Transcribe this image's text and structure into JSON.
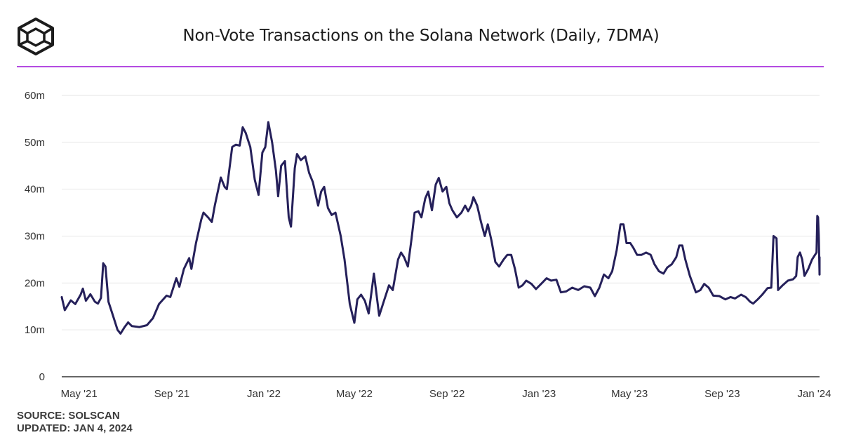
{
  "title": "Non-Vote Transactions on the Solana Network (Daily, 7DMA)",
  "colors": {
    "line": "#25205a",
    "accent_rule": "#b44be1",
    "grid": "#e6e6e6",
    "text": "#333333"
  },
  "icons": {
    "logo": "cube-logo-icon"
  },
  "footer": {
    "source": "SOURCE: SOLSCAN",
    "updated": "UPDATED: JAN 4, 2024"
  },
  "chart_data": {
    "type": "line",
    "title": "Non-Vote Transactions on the Solana Network (Daily, 7DMA)",
    "xlabel": "",
    "ylabel": "",
    "x_range": [
      "2021-04-08",
      "2024-01-08"
    ],
    "ylim": [
      0,
      60000000
    ],
    "y_ticks": [
      0,
      10000000,
      20000000,
      30000000,
      40000000,
      50000000,
      60000000
    ],
    "y_tick_labels": [
      "0",
      "10m",
      "20m",
      "30m",
      "40m",
      "50m",
      "60m"
    ],
    "x_ticks": [
      "2021-05-01",
      "2021-09-01",
      "2022-01-01",
      "2022-05-01",
      "2022-09-01",
      "2023-01-01",
      "2023-05-01",
      "2023-09-01",
      "2024-01-01"
    ],
    "x_tick_labels": [
      "May '21",
      "Sep '21",
      "Jan '22",
      "May '22",
      "Sep '22",
      "Jan '23",
      "May '23",
      "Sep '23",
      "Jan '24"
    ],
    "grid": true,
    "legend": "none",
    "series": [
      {
        "values_in_millions": true,
        "points": [
          [
            "2021-04-08",
            17.0
          ],
          [
            "2021-04-12",
            14.2
          ],
          [
            "2021-04-20",
            16.3
          ],
          [
            "2021-04-26",
            15.5
          ],
          [
            "2021-05-03",
            17.5
          ],
          [
            "2021-05-06",
            18.8
          ],
          [
            "2021-05-10",
            16.2
          ],
          [
            "2021-05-16",
            17.6
          ],
          [
            "2021-05-22",
            16.0
          ],
          [
            "2021-05-26",
            15.6
          ],
          [
            "2021-05-30",
            16.8
          ],
          [
            "2021-06-02",
            24.2
          ],
          [
            "2021-06-05",
            23.5
          ],
          [
            "2021-06-09",
            16.0
          ],
          [
            "2021-06-15",
            13.0
          ],
          [
            "2021-06-21",
            10.0
          ],
          [
            "2021-06-25",
            9.2
          ],
          [
            "2021-06-30",
            10.5
          ],
          [
            "2021-07-05",
            11.6
          ],
          [
            "2021-07-10",
            10.8
          ],
          [
            "2021-07-20",
            10.6
          ],
          [
            "2021-07-30",
            11.0
          ],
          [
            "2021-08-07",
            12.5
          ],
          [
            "2021-08-15",
            15.5
          ],
          [
            "2021-08-25",
            17.3
          ],
          [
            "2021-08-30",
            17.0
          ],
          [
            "2021-09-03",
            19.0
          ],
          [
            "2021-09-07",
            21.0
          ],
          [
            "2021-09-11",
            19.2
          ],
          [
            "2021-09-17",
            23.0
          ],
          [
            "2021-09-24",
            25.3
          ],
          [
            "2021-09-27",
            23.0
          ],
          [
            "2021-10-03",
            28.5
          ],
          [
            "2021-10-10",
            33.5
          ],
          [
            "2021-10-13",
            35.0
          ],
          [
            "2021-10-19",
            34.0
          ],
          [
            "2021-10-24",
            33.0
          ],
          [
            "2021-10-28",
            36.5
          ],
          [
            "2021-11-05",
            42.5
          ],
          [
            "2021-11-10",
            40.5
          ],
          [
            "2021-11-13",
            40.0
          ],
          [
            "2021-11-20",
            49.0
          ],
          [
            "2021-11-25",
            49.5
          ],
          [
            "2021-11-30",
            49.3
          ],
          [
            "2021-12-04",
            53.2
          ],
          [
            "2021-12-08",
            52.0
          ],
          [
            "2021-12-11",
            50.5
          ],
          [
            "2021-12-14",
            49.0
          ],
          [
            "2021-12-20",
            42.0
          ],
          [
            "2021-12-25",
            38.8
          ],
          [
            "2021-12-30",
            47.8
          ],
          [
            "2022-01-03",
            49.0
          ],
          [
            "2022-01-07",
            54.3
          ],
          [
            "2022-01-12",
            50.0
          ],
          [
            "2022-01-17",
            44.0
          ],
          [
            "2022-01-20",
            38.5
          ],
          [
            "2022-01-24",
            45.0
          ],
          [
            "2022-01-29",
            46.0
          ],
          [
            "2022-02-03",
            34.0
          ],
          [
            "2022-02-06",
            32.0
          ],
          [
            "2022-02-11",
            44.5
          ],
          [
            "2022-02-14",
            47.5
          ],
          [
            "2022-02-19",
            46.2
          ],
          [
            "2022-02-25",
            47.0
          ],
          [
            "2022-03-02",
            43.5
          ],
          [
            "2022-03-07",
            41.5
          ],
          [
            "2022-03-14",
            36.5
          ],
          [
            "2022-03-18",
            39.5
          ],
          [
            "2022-03-22",
            40.5
          ],
          [
            "2022-03-27",
            36.0
          ],
          [
            "2022-04-01",
            34.5
          ],
          [
            "2022-04-06",
            35.0
          ],
          [
            "2022-04-13",
            30.0
          ],
          [
            "2022-04-18",
            25.0
          ],
          [
            "2022-04-25",
            15.5
          ],
          [
            "2022-05-01",
            11.5
          ],
          [
            "2022-05-05",
            16.5
          ],
          [
            "2022-05-10",
            17.5
          ],
          [
            "2022-05-15",
            16.2
          ],
          [
            "2022-05-20",
            13.5
          ],
          [
            "2022-05-27",
            22.0
          ],
          [
            "2022-06-03",
            13.0
          ],
          [
            "2022-06-10",
            16.5
          ],
          [
            "2022-06-16",
            19.5
          ],
          [
            "2022-06-21",
            18.5
          ],
          [
            "2022-06-28",
            25.0
          ],
          [
            "2022-07-02",
            26.5
          ],
          [
            "2022-07-06",
            25.5
          ],
          [
            "2022-07-11",
            23.5
          ],
          [
            "2022-07-16",
            29.5
          ],
          [
            "2022-07-20",
            35.0
          ],
          [
            "2022-07-25",
            35.3
          ],
          [
            "2022-07-29",
            34.0
          ],
          [
            "2022-08-03",
            38.0
          ],
          [
            "2022-08-07",
            39.5
          ],
          [
            "2022-08-12",
            35.5
          ],
          [
            "2022-08-17",
            41.0
          ],
          [
            "2022-08-21",
            42.4
          ],
          [
            "2022-08-26",
            39.5
          ],
          [
            "2022-08-31",
            40.5
          ],
          [
            "2022-09-04",
            37.0
          ],
          [
            "2022-09-08",
            35.5
          ],
          [
            "2022-09-14",
            34.0
          ],
          [
            "2022-09-20",
            35.0
          ],
          [
            "2022-09-25",
            36.5
          ],
          [
            "2022-09-29",
            35.3
          ],
          [
            "2022-10-03",
            36.5
          ],
          [
            "2022-10-06",
            38.3
          ],
          [
            "2022-10-11",
            36.5
          ],
          [
            "2022-10-16",
            33.0
          ],
          [
            "2022-10-21",
            30.0
          ],
          [
            "2022-10-25",
            32.5
          ],
          [
            "2022-10-30",
            29.0
          ],
          [
            "2022-11-04",
            24.5
          ],
          [
            "2022-11-09",
            23.5
          ],
          [
            "2022-11-15",
            25.0
          ],
          [
            "2022-11-20",
            26.0
          ],
          [
            "2022-11-25",
            26.0
          ],
          [
            "2022-11-30",
            23.0
          ],
          [
            "2022-12-05",
            19.0
          ],
          [
            "2022-12-10",
            19.5
          ],
          [
            "2022-12-15",
            20.5
          ],
          [
            "2022-12-22",
            19.8
          ],
          [
            "2022-12-28",
            18.7
          ],
          [
            "2023-01-05",
            20.0
          ],
          [
            "2023-01-11",
            21.0
          ],
          [
            "2023-01-17",
            20.5
          ],
          [
            "2023-01-24",
            20.7
          ],
          [
            "2023-01-30",
            18.0
          ],
          [
            "2023-02-06",
            18.2
          ],
          [
            "2023-02-14",
            19.0
          ],
          [
            "2023-02-22",
            18.5
          ],
          [
            "2023-03-02",
            19.3
          ],
          [
            "2023-03-10",
            19.0
          ],
          [
            "2023-03-16",
            17.2
          ],
          [
            "2023-03-22",
            19.0
          ],
          [
            "2023-03-28",
            21.8
          ],
          [
            "2023-04-03",
            21.0
          ],
          [
            "2023-04-08",
            22.5
          ],
          [
            "2023-04-14",
            27.0
          ],
          [
            "2023-04-19",
            32.5
          ],
          [
            "2023-04-23",
            32.5
          ],
          [
            "2023-04-27",
            28.5
          ],
          [
            "2023-05-02",
            28.5
          ],
          [
            "2023-05-06",
            27.5
          ],
          [
            "2023-05-11",
            26.0
          ],
          [
            "2023-05-17",
            26.0
          ],
          [
            "2023-05-23",
            26.5
          ],
          [
            "2023-05-29",
            26.0
          ],
          [
            "2023-06-03",
            24.0
          ],
          [
            "2023-06-09",
            22.5
          ],
          [
            "2023-06-15",
            22.0
          ],
          [
            "2023-06-20",
            23.3
          ],
          [
            "2023-06-26",
            24.0
          ],
          [
            "2023-07-02",
            25.5
          ],
          [
            "2023-07-06",
            28.0
          ],
          [
            "2023-07-10",
            28.0
          ],
          [
            "2023-07-14",
            25.0
          ],
          [
            "2023-07-20",
            21.5
          ],
          [
            "2023-07-28",
            18.0
          ],
          [
            "2023-08-03",
            18.5
          ],
          [
            "2023-08-08",
            19.8
          ],
          [
            "2023-08-14",
            19.0
          ],
          [
            "2023-08-20",
            17.3
          ],
          [
            "2023-08-28",
            17.2
          ],
          [
            "2023-09-05",
            16.5
          ],
          [
            "2023-09-12",
            17.0
          ],
          [
            "2023-09-18",
            16.7
          ],
          [
            "2023-09-26",
            17.5
          ],
          [
            "2023-10-02",
            17.0
          ],
          [
            "2023-10-08",
            16.0
          ],
          [
            "2023-10-12",
            15.6
          ],
          [
            "2023-10-18",
            16.5
          ],
          [
            "2023-10-24",
            17.5
          ],
          [
            "2023-10-31",
            18.9
          ],
          [
            "2023-11-05",
            19.0
          ],
          [
            "2023-11-08",
            30.0
          ],
          [
            "2023-11-12",
            29.5
          ],
          [
            "2023-11-14",
            18.5
          ],
          [
            "2023-11-20",
            19.5
          ],
          [
            "2023-11-27",
            20.5
          ],
          [
            "2023-12-04",
            20.8
          ],
          [
            "2023-12-08",
            21.5
          ],
          [
            "2023-12-10",
            25.5
          ],
          [
            "2023-12-13",
            26.5
          ],
          [
            "2023-12-16",
            25.0
          ],
          [
            "2023-12-19",
            21.5
          ],
          [
            "2023-12-24",
            23.0
          ],
          [
            "2023-12-29",
            25.0
          ],
          [
            "2024-01-02",
            26.0
          ],
          [
            "2024-01-04",
            26.5
          ],
          [
            "2024-01-05",
            34.3
          ],
          [
            "2024-01-06",
            34.0
          ],
          [
            "2024-01-07",
            30.0
          ],
          [
            "2024-01-08",
            21.8
          ],
          [
            "2024-01-08",
            25.5
          ]
        ]
      }
    ]
  }
}
